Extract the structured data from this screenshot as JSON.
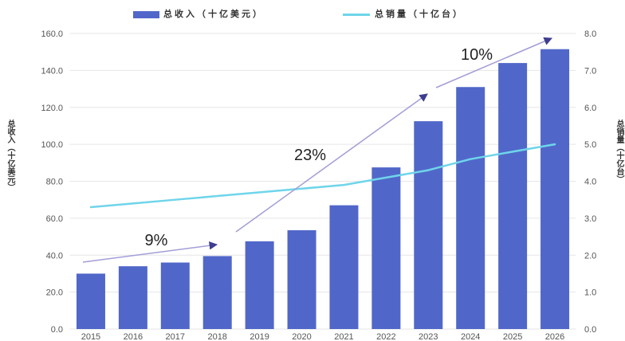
{
  "chart_data": {
    "type": "bar",
    "categories": [
      "2015",
      "2016",
      "2017",
      "2018",
      "2019",
      "2020",
      "2021",
      "2022",
      "2023",
      "2024",
      "2025",
      "2026"
    ],
    "series": [
      {
        "name": "总收入（十亿美元）",
        "type": "bar",
        "axis": "left",
        "color": "#5067c9",
        "values": [
          30,
          34,
          36,
          39.5,
          47.5,
          53.5,
          67,
          87.5,
          112.5,
          131,
          144,
          151.5
        ]
      },
      {
        "name": "总销量（十亿台）",
        "type": "line",
        "axis": "right",
        "color": "#6fd5ea",
        "values": [
          3.3,
          3.4,
          3.5,
          3.6,
          3.7,
          3.8,
          3.9,
          4.1,
          4.3,
          4.6,
          4.8,
          5.0
        ]
      }
    ],
    "y_left": {
      "title": "总收入（十亿美元）",
      "range": [
        0,
        160
      ],
      "ticks": [
        "0.0",
        "20.0",
        "40.0",
        "60.0",
        "80.0",
        "100.0",
        "120.0",
        "140.0",
        "160.0"
      ]
    },
    "y_right": {
      "title": "总销量（十亿台）",
      "range": [
        0,
        8
      ],
      "ticks": [
        "0.0",
        "1.0",
        "2.0",
        "3.0",
        "4.0",
        "5.0",
        "6.0",
        "7.0",
        "8.0"
      ]
    },
    "grid": true,
    "legend_position": "top",
    "annotations": [
      {
        "text": "9%"
      },
      {
        "text": "23%"
      },
      {
        "text": "10%"
      }
    ]
  },
  "colors": {
    "grid": "#e6e6e6",
    "annotation_arrow": "#a29ed7",
    "annotation_arrowhead": "#3f3d8f"
  }
}
